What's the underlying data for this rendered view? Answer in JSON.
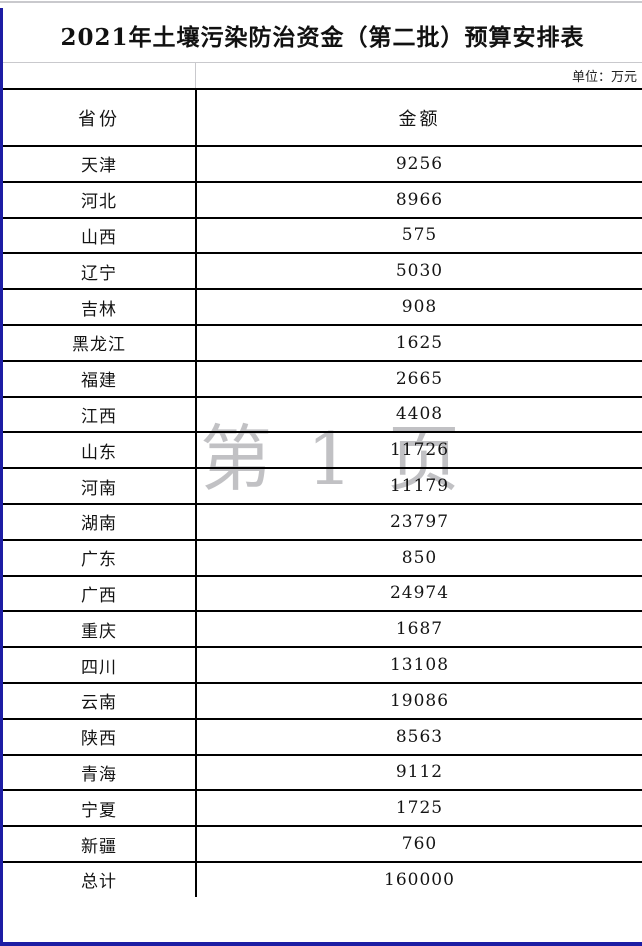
{
  "page": {
    "title": "2021年土壤污染防治资金（第二批）预算安排表",
    "unit_note": "单位：万元",
    "watermark": "第 1 页"
  },
  "table": {
    "headers": {
      "province": "省份",
      "amount": "金额"
    },
    "rows": [
      {
        "province": "天津",
        "amount": "9256"
      },
      {
        "province": "河北",
        "amount": "8966"
      },
      {
        "province": "山西",
        "amount": "575"
      },
      {
        "province": "辽宁",
        "amount": "5030"
      },
      {
        "province": "吉林",
        "amount": "908"
      },
      {
        "province": "黑龙江",
        "amount": "1625"
      },
      {
        "province": "福建",
        "amount": "2665"
      },
      {
        "province": "江西",
        "amount": "4408"
      },
      {
        "province": "山东",
        "amount": "11726"
      },
      {
        "province": "河南",
        "amount": "11179"
      },
      {
        "province": "湖南",
        "amount": "23797"
      },
      {
        "province": "广东",
        "amount": "850"
      },
      {
        "province": "广西",
        "amount": "24974"
      },
      {
        "province": "重庆",
        "amount": "1687"
      },
      {
        "province": "四川",
        "amount": "13108"
      },
      {
        "province": "云南",
        "amount": "19086"
      },
      {
        "province": "陕西",
        "amount": "8563"
      },
      {
        "province": "青海",
        "amount": "9112"
      },
      {
        "province": "宁夏",
        "amount": "1725"
      },
      {
        "province": "新疆",
        "amount": "760"
      },
      {
        "province": "总计",
        "amount": "160000"
      }
    ]
  },
  "colors": {
    "frame_blue": "#1d1da4",
    "grid_black": "#000000",
    "light_gray_line": "#c9c9cd",
    "watermark_gray": "#8f8f94"
  }
}
